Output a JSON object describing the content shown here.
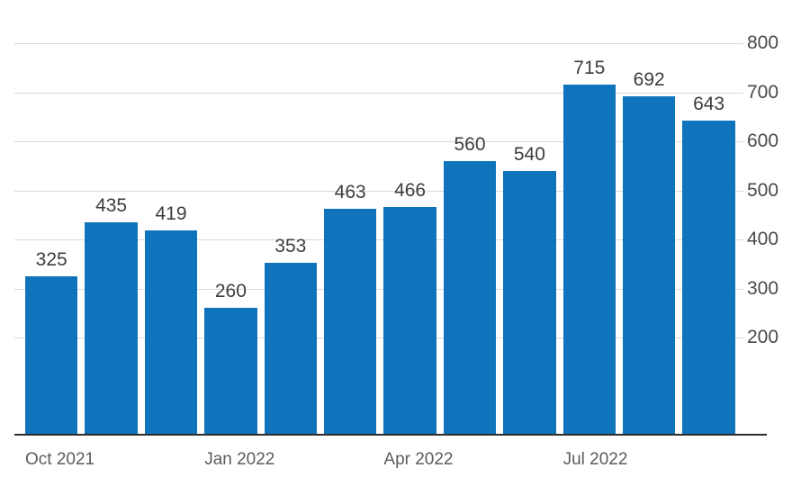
{
  "chart_data": {
    "type": "bar",
    "values": [
      325,
      435,
      419,
      260,
      353,
      463,
      466,
      560,
      540,
      715,
      692,
      643
    ],
    "value_labels": [
      "325",
      "435",
      "419",
      "260",
      "353",
      "463",
      "466",
      "560",
      "540",
      "715",
      "692",
      "643"
    ],
    "x_tick_labels": [
      {
        "label": "Oct 2021",
        "bar_index": 0
      },
      {
        "label": "Jan 2022",
        "bar_index": 3
      },
      {
        "label": "Apr 2022",
        "bar_index": 6
      },
      {
        "label": "Jul 2022",
        "bar_index": 9
      }
    ],
    "y_ticks": [
      800,
      700,
      600,
      500,
      400,
      300,
      200
    ],
    "ylim": [
      0,
      800
    ],
    "title": "",
    "xlabel": "",
    "ylabel": "",
    "grid": "horizontal",
    "legend": "none",
    "y_axis_side": "right",
    "value_labels_shown": true
  },
  "colors": {
    "bar": "#1074bc",
    "grid": "#dadada",
    "axis_line": "#2d2d2d",
    "value_label": "#3d3d3d",
    "y_tick_label": "#494949",
    "x_tick_label": "#5c5c5c",
    "background": "#ffffff"
  }
}
